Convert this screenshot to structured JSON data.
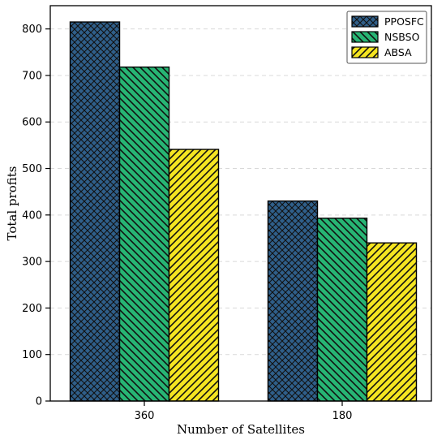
{
  "chart_data": {
    "type": "bar",
    "title": "",
    "xlabel": "Number of Satellites",
    "ylabel": "Total profits",
    "categories": [
      "360",
      "180"
    ],
    "series": [
      {
        "name": "PPOSFC",
        "values": [
          815,
          430
        ],
        "color": "#2f5f8a",
        "pattern": "crosshatch"
      },
      {
        "name": "NSBSO",
        "values": [
          718,
          393
        ],
        "color": "#27b574",
        "pattern": "diagonal-back"
      },
      {
        "name": "ABSA",
        "values": [
          541,
          340
        ],
        "color": "#f5e521",
        "pattern": "diagonal-forward"
      }
    ],
    "ylim": [
      0,
      850
    ],
    "yticks": [
      0,
      100,
      200,
      300,
      400,
      500,
      600,
      700,
      800
    ],
    "grid": "y-dashed",
    "legend_position": "top-right"
  }
}
